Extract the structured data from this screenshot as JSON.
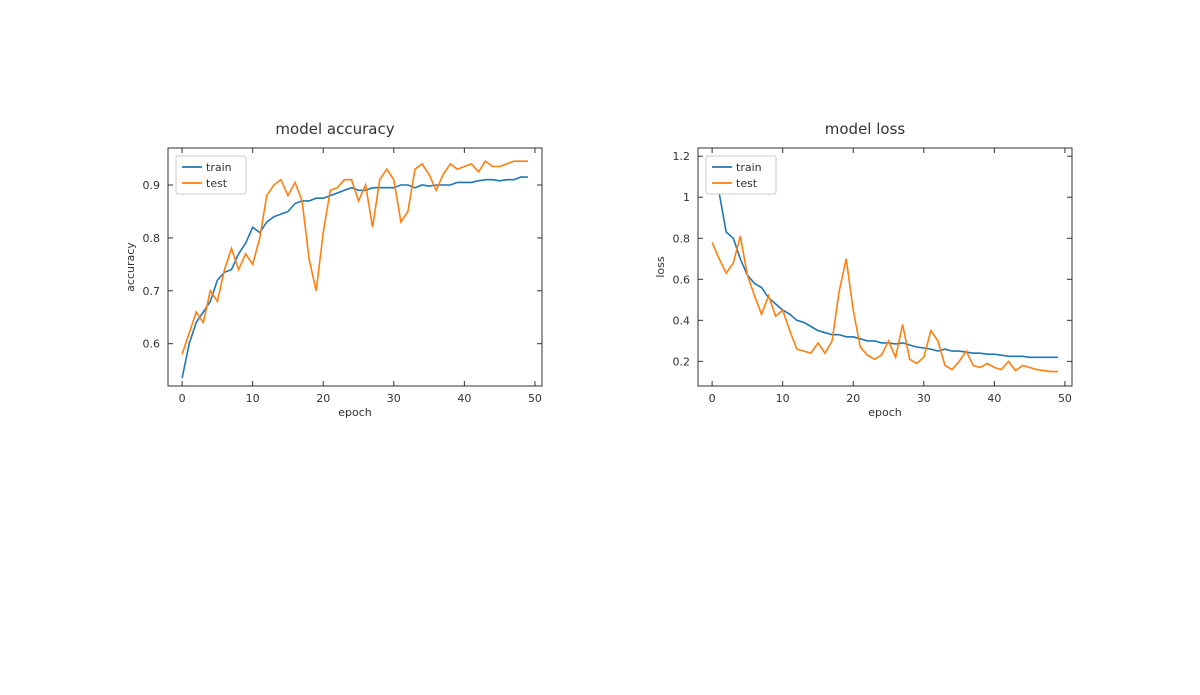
{
  "figure": {
    "background_color": "#ffffff",
    "font_family": "DejaVu Sans",
    "title_fontsize": 15,
    "tick_fontsize": 11,
    "axis_label_fontsize": 11,
    "line_width": 1.6,
    "spine_color": "#333333",
    "tick_color": "#333333",
    "text_color": "#333333"
  },
  "colors": {
    "train": "#1f77b4",
    "test": "#ff7f0e"
  },
  "legend": {
    "items": [
      "train",
      "test"
    ],
    "position": "upper-left",
    "border_color": "#cccccc",
    "background": "#ffffff"
  },
  "accuracy_chart": {
    "type": "line",
    "title": "model accuracy",
    "xlabel": "epoch",
    "ylabel": "accuracy",
    "xlim": [
      -2,
      51
    ],
    "ylim": [
      0.52,
      0.97
    ],
    "xticks": [
      0,
      10,
      20,
      30,
      40,
      50
    ],
    "yticks": [
      0.6,
      0.7,
      0.8,
      0.9
    ],
    "grid": false,
    "series": {
      "train": {
        "color": "#1f77b4",
        "x": [
          0,
          1,
          2,
          3,
          4,
          5,
          6,
          7,
          8,
          9,
          10,
          11,
          12,
          13,
          14,
          15,
          16,
          17,
          18,
          19,
          20,
          21,
          22,
          23,
          24,
          25,
          26,
          27,
          28,
          29,
          30,
          31,
          32,
          33,
          34,
          35,
          36,
          37,
          38,
          39,
          40,
          41,
          42,
          43,
          44,
          45,
          46,
          47,
          48,
          49
        ],
        "y": [
          0.535,
          0.6,
          0.64,
          0.66,
          0.68,
          0.72,
          0.735,
          0.74,
          0.77,
          0.79,
          0.82,
          0.81,
          0.83,
          0.84,
          0.845,
          0.85,
          0.865,
          0.87,
          0.87,
          0.875,
          0.875,
          0.88,
          0.885,
          0.89,
          0.895,
          0.89,
          0.89,
          0.895,
          0.895,
          0.895,
          0.895,
          0.9,
          0.9,
          0.895,
          0.9,
          0.898,
          0.9,
          0.9,
          0.9,
          0.905,
          0.905,
          0.905,
          0.908,
          0.91,
          0.91,
          0.908,
          0.91,
          0.91,
          0.915,
          0.915
        ]
      },
      "test": {
        "color": "#ff7f0e",
        "x": [
          0,
          1,
          2,
          3,
          4,
          5,
          6,
          7,
          8,
          9,
          10,
          11,
          12,
          13,
          14,
          15,
          16,
          17,
          18,
          19,
          20,
          21,
          22,
          23,
          24,
          25,
          26,
          27,
          28,
          29,
          30,
          31,
          32,
          33,
          34,
          35,
          36,
          37,
          38,
          39,
          40,
          41,
          42,
          43,
          44,
          45,
          46,
          47,
          48,
          49
        ],
        "y": [
          0.58,
          0.62,
          0.66,
          0.64,
          0.7,
          0.68,
          0.74,
          0.78,
          0.74,
          0.77,
          0.75,
          0.8,
          0.88,
          0.9,
          0.91,
          0.88,
          0.905,
          0.87,
          0.76,
          0.7,
          0.81,
          0.89,
          0.895,
          0.91,
          0.91,
          0.87,
          0.9,
          0.82,
          0.91,
          0.93,
          0.91,
          0.83,
          0.85,
          0.93,
          0.94,
          0.92,
          0.89,
          0.92,
          0.94,
          0.93,
          0.935,
          0.94,
          0.925,
          0.945,
          0.935,
          0.935,
          0.94,
          0.945,
          0.945,
          0.945
        ]
      }
    }
  },
  "loss_chart": {
    "type": "line",
    "title": "model loss",
    "xlabel": "epoch",
    "ylabel": "loss",
    "xlim": [
      -2,
      51
    ],
    "ylim": [
      0.08,
      1.24
    ],
    "xticks": [
      0,
      10,
      20,
      30,
      40,
      50
    ],
    "yticks": [
      0.2,
      0.4,
      0.6,
      0.8,
      1.0,
      1.2
    ],
    "grid": false,
    "series": {
      "train": {
        "color": "#1f77b4",
        "x": [
          0,
          1,
          2,
          3,
          4,
          5,
          6,
          7,
          8,
          9,
          10,
          11,
          12,
          13,
          14,
          15,
          16,
          17,
          18,
          19,
          20,
          21,
          22,
          23,
          24,
          25,
          26,
          27,
          28,
          29,
          30,
          31,
          32,
          33,
          34,
          35,
          36,
          37,
          38,
          39,
          40,
          41,
          42,
          43,
          44,
          45,
          46,
          47,
          48,
          49
        ],
        "y": [
          1.2,
          1.02,
          0.83,
          0.8,
          0.7,
          0.62,
          0.58,
          0.56,
          0.51,
          0.48,
          0.45,
          0.43,
          0.4,
          0.39,
          0.37,
          0.35,
          0.34,
          0.33,
          0.33,
          0.32,
          0.32,
          0.31,
          0.3,
          0.3,
          0.29,
          0.29,
          0.285,
          0.29,
          0.28,
          0.27,
          0.265,
          0.26,
          0.25,
          0.26,
          0.25,
          0.25,
          0.245,
          0.24,
          0.24,
          0.235,
          0.235,
          0.23,
          0.225,
          0.225,
          0.225,
          0.22,
          0.22,
          0.22,
          0.22,
          0.22
        ]
      },
      "test": {
        "color": "#ff7f0e",
        "x": [
          0,
          1,
          2,
          3,
          4,
          5,
          6,
          7,
          8,
          9,
          10,
          11,
          12,
          13,
          14,
          15,
          16,
          17,
          18,
          19,
          20,
          21,
          22,
          23,
          24,
          25,
          26,
          27,
          28,
          29,
          30,
          31,
          32,
          33,
          34,
          35,
          36,
          37,
          38,
          39,
          40,
          41,
          42,
          43,
          44,
          45,
          46,
          47,
          48,
          49
        ],
        "y": [
          0.78,
          0.7,
          0.63,
          0.68,
          0.81,
          0.62,
          0.52,
          0.43,
          0.52,
          0.42,
          0.45,
          0.35,
          0.26,
          0.25,
          0.24,
          0.29,
          0.24,
          0.3,
          0.54,
          0.7,
          0.45,
          0.27,
          0.23,
          0.21,
          0.23,
          0.3,
          0.22,
          0.38,
          0.21,
          0.19,
          0.22,
          0.35,
          0.3,
          0.18,
          0.16,
          0.2,
          0.25,
          0.18,
          0.17,
          0.19,
          0.17,
          0.16,
          0.2,
          0.155,
          0.18,
          0.17,
          0.16,
          0.155,
          0.15,
          0.15
        ]
      }
    }
  }
}
